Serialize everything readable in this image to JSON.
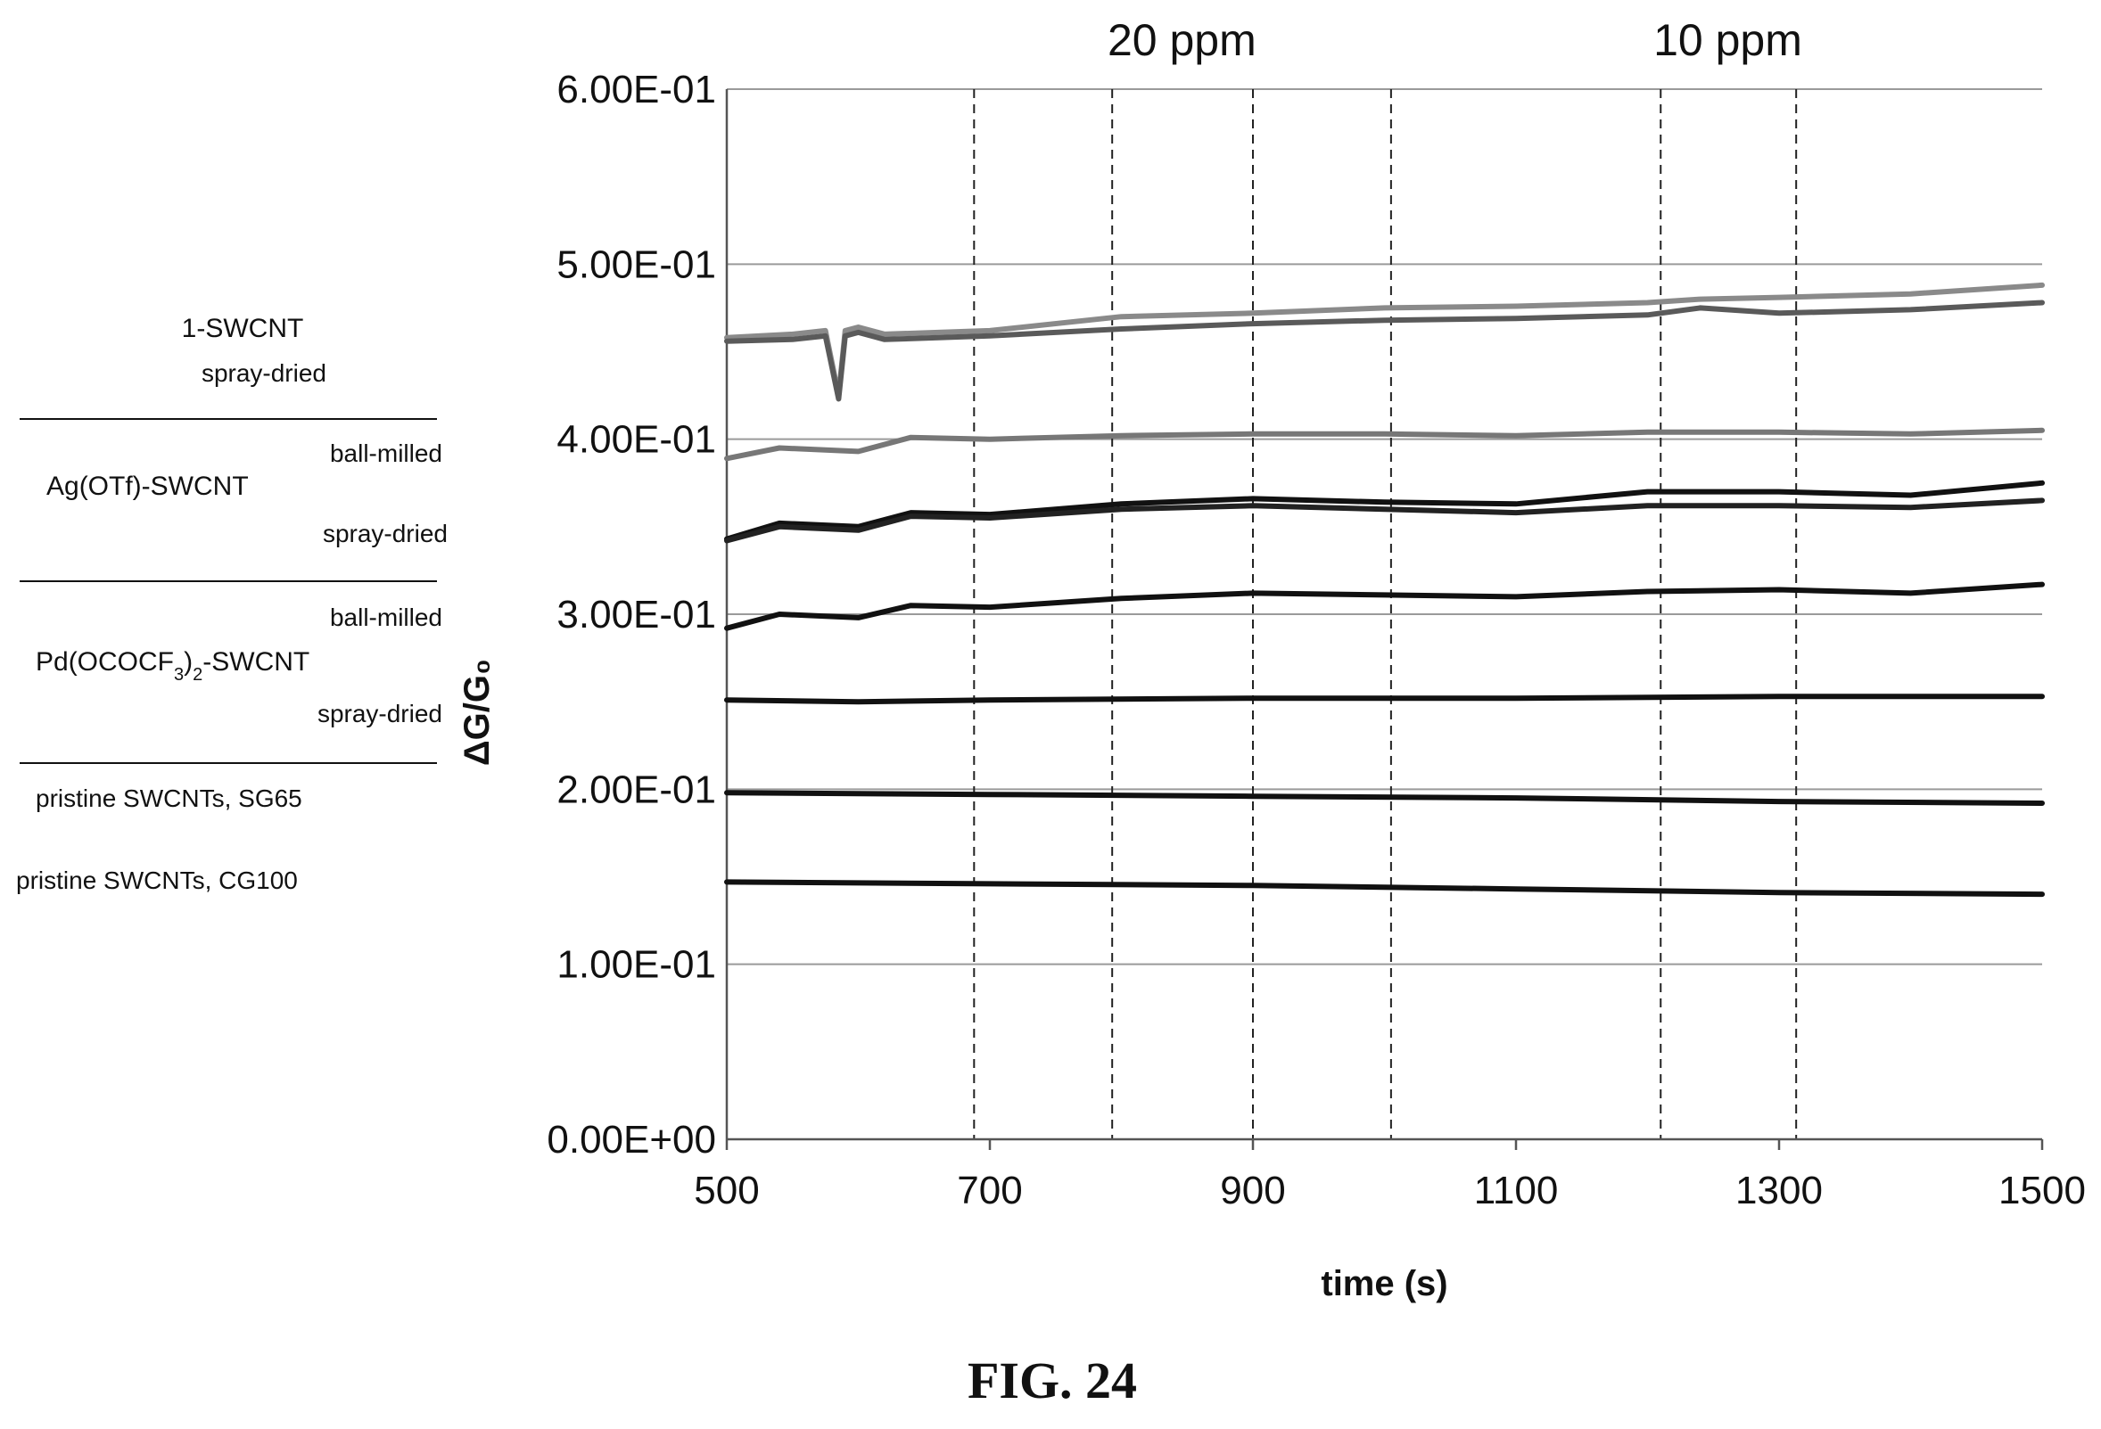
{
  "chart_data": {
    "type": "line",
    "title": "",
    "xlabel": "time (s)",
    "ylabel": "ΔG/G₀",
    "xlim": [
      500,
      1500
    ],
    "ylim": [
      0,
      0.6
    ],
    "x_ticks": [
      500,
      700,
      900,
      1100,
      1300,
      1500
    ],
    "x_tick_labels": [
      "500",
      "700",
      "900",
      "1100",
      "1300",
      "1500"
    ],
    "y_ticks": [
      0,
      0.1,
      0.2,
      0.3,
      0.4,
      0.5,
      0.6
    ],
    "y_tick_labels": [
      "0.00E+00",
      "1.00E-01",
      "2.00E-01",
      "3.00E-01",
      "4.00E-01",
      "5.00E-01",
      "6.00E-01"
    ],
    "grid": {
      "horizontal": true,
      "vertical": false
    },
    "vertical_markers": [
      688,
      793,
      900,
      1005,
      1210,
      1313
    ],
    "exposure_labels": [
      {
        "text": "20 ppm",
        "x": 846
      },
      {
        "text": "10 ppm",
        "x": 1261
      }
    ],
    "legend": {
      "placement": "left",
      "groups": [
        {
          "name": "1-SWCNT",
          "subs": [
            "spray-dried"
          ]
        },
        {
          "name": "Ag(OTf)-SWCNT",
          "subs": [
            "ball-milled",
            "spray-dried"
          ]
        },
        {
          "name_parts": [
            "Pd(OCOCF",
            "3",
            ")",
            "2",
            "-SWCNT"
          ],
          "subs": [
            "ball-milled",
            "spray-dried"
          ]
        },
        {
          "name": "pristine SWCNTs, SG65",
          "subs": []
        },
        {
          "name": "pristine SWCNTs, CG100",
          "subs": []
        }
      ]
    },
    "series": [
      {
        "color": "#8a8a8a",
        "x": [
          500,
          550,
          575,
          585,
          590,
          600,
          620,
          700,
          800,
          900,
          1000,
          1100,
          1200,
          1240,
          1300,
          1400,
          1500
        ],
        "values": [
          0.458,
          0.46,
          0.462,
          0.425,
          0.462,
          0.464,
          0.46,
          0.462,
          0.47,
          0.472,
          0.475,
          0.476,
          0.478,
          0.48,
          0.481,
          0.483,
          0.488
        ]
      },
      {
        "color": "#5a5a5a",
        "x": [
          500,
          550,
          575,
          585,
          590,
          600,
          620,
          700,
          800,
          900,
          1000,
          1100,
          1200,
          1240,
          1300,
          1400,
          1500
        ],
        "values": [
          0.456,
          0.457,
          0.459,
          0.423,
          0.459,
          0.461,
          0.457,
          0.459,
          0.463,
          0.466,
          0.468,
          0.469,
          0.471,
          0.475,
          0.472,
          0.474,
          0.478
        ]
      },
      {
        "color": "#777777",
        "x": [
          500,
          540,
          600,
          640,
          700,
          800,
          900,
          1000,
          1100,
          1200,
          1300,
          1400,
          1500
        ],
        "values": [
          0.389,
          0.395,
          0.393,
          0.401,
          0.4,
          0.402,
          0.403,
          0.403,
          0.402,
          0.404,
          0.404,
          0.403,
          0.405
        ]
      },
      {
        "color": "#111111",
        "x": [
          500,
          540,
          600,
          640,
          700,
          800,
          900,
          1000,
          1100,
          1200,
          1300,
          1400,
          1500
        ],
        "values": [
          0.343,
          0.352,
          0.35,
          0.358,
          0.357,
          0.363,
          0.366,
          0.364,
          0.363,
          0.37,
          0.37,
          0.368,
          0.375
        ]
      },
      {
        "color": "#222222",
        "x": [
          500,
          540,
          600,
          640,
          700,
          800,
          900,
          1000,
          1100,
          1200,
          1300,
          1400,
          1500
        ],
        "values": [
          0.342,
          0.35,
          0.348,
          0.356,
          0.355,
          0.36,
          0.362,
          0.36,
          0.358,
          0.362,
          0.362,
          0.361,
          0.365
        ]
      },
      {
        "color": "#111111",
        "x": [
          500,
          540,
          600,
          640,
          700,
          800,
          900,
          1000,
          1100,
          1200,
          1300,
          1400,
          1500
        ],
        "values": [
          0.292,
          0.3,
          0.298,
          0.305,
          0.304,
          0.309,
          0.312,
          0.311,
          0.31,
          0.313,
          0.314,
          0.312,
          0.317
        ]
      },
      {
        "color": "#111111",
        "x": [
          500,
          600,
          700,
          900,
          1100,
          1300,
          1500
        ],
        "values": [
          0.251,
          0.25,
          0.251,
          0.252,
          0.252,
          0.253,
          0.253
        ]
      },
      {
        "color": "#111111",
        "x": [
          500,
          700,
          900,
          1100,
          1300,
          1500
        ],
        "values": [
          0.198,
          0.197,
          0.196,
          0.195,
          0.193,
          0.192
        ]
      },
      {
        "color": "#111111",
        "x": [
          500,
          700,
          900,
          1100,
          1300,
          1500
        ],
        "values": [
          0.147,
          0.146,
          0.145,
          0.143,
          0.141,
          0.14
        ]
      }
    ]
  },
  "caption": "FIG. 24"
}
